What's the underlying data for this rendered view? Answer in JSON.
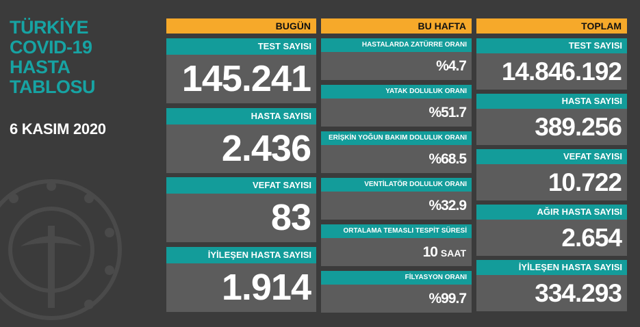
{
  "header": {
    "title_lines": [
      "TÜRKİYE",
      "COVID-19",
      "HASTA",
      "TABLOSU"
    ],
    "date": "6 KASIM 2020"
  },
  "columns": [
    {
      "heading": "BUGÜN",
      "cards": [
        {
          "label": "TEST SAYISI",
          "value": "145.241"
        },
        {
          "label": "HASTA SAYISI",
          "value": "2.436"
        },
        {
          "label": "VEFAT SAYISI",
          "value": "83"
        },
        {
          "label": "İYİLEŞEN HASTA SAYISI",
          "value": "1.914"
        }
      ]
    },
    {
      "heading": "BU HAFTA",
      "cards": [
        {
          "label": "HASTALARDA ZATÜRRE ORANI",
          "value": "%4.7"
        },
        {
          "label": "YATAK DOLULUK ORANI",
          "value": "%51.7"
        },
        {
          "label": "ERİŞKİN YOĞUN BAKIM DOLULUK ORANI",
          "value": "%68.5"
        },
        {
          "label": "VENTİLATÖR DOLULUK ORANI",
          "value": "%32.9"
        },
        {
          "label": "ORTALAMA TEMASLI TESPİT SÜRESİ",
          "value": "10",
          "unit": "SAAT"
        },
        {
          "label": "FİLYASYON ORANI",
          "value": "%99.7"
        }
      ]
    },
    {
      "heading": "TOPLAM",
      "cards": [
        {
          "label": "TEST SAYISI",
          "value": "14.846.192"
        },
        {
          "label": "HASTA SAYISI",
          "value": "389.256"
        },
        {
          "label": "VEFAT SAYISI",
          "value": "10.722"
        },
        {
          "label": "AĞIR HASTA SAYISI",
          "value": "2.654"
        },
        {
          "label": "İYİLEŞEN HASTA SAYISI",
          "value": "334.293"
        }
      ]
    }
  ]
}
